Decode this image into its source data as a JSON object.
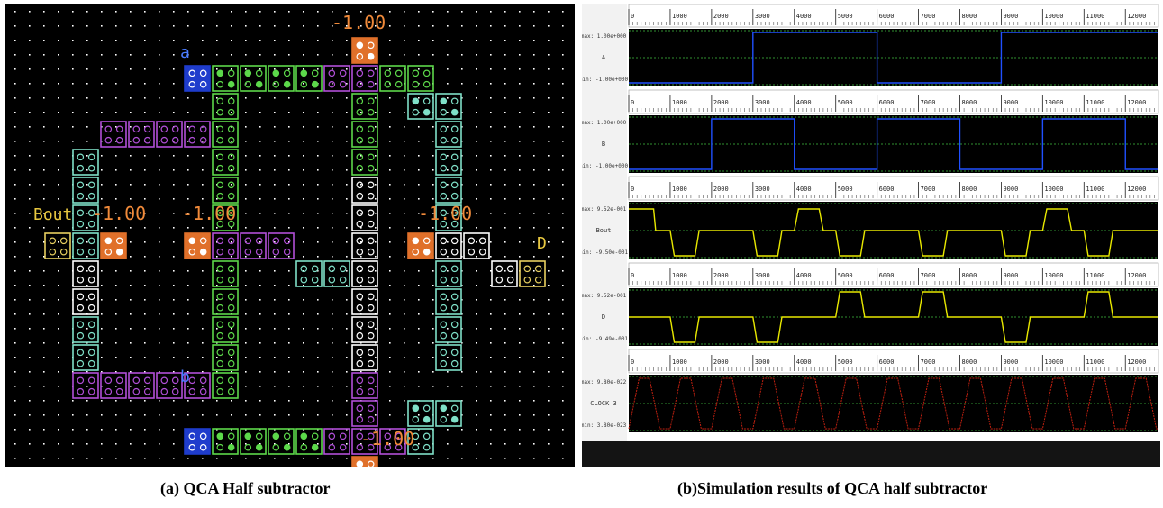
{
  "layout": {
    "labels": {
      "input_a": "a",
      "input_b": "b",
      "output_bout": "Bout",
      "output_d": "D"
    },
    "fixed_cell_values": [
      "-1.00",
      "-1.00",
      "-1.00",
      "-1.00",
      "-1.00"
    ],
    "colors": {
      "background": "#000000",
      "grid_dot": "#ffffff",
      "input_cell": "#1f3ccc",
      "output_cell": "#e8d060",
      "fixed_cell": "#e0702a",
      "clock0": "#5cd84a",
      "clock1": "#b14fd8",
      "clock2": "#7fe0c8",
      "clock3": "#ffffff",
      "value_text": "#f08a3a",
      "label_text": "#4a7cff"
    }
  },
  "simulation": {
    "ticks": [
      "0",
      "1000",
      "2000",
      "3000",
      "4000",
      "5000",
      "6000",
      "7000",
      "8000",
      "9000",
      "10000",
      "11000",
      "12000"
    ],
    "rows": [
      {
        "name": "A",
        "max": "max: 1.00e+000",
        "min": "min: -1.00e+000",
        "color": "#2050ff"
      },
      {
        "name": "B",
        "max": "max: 1.00e+000",
        "min": "min: -1.00e+000",
        "color": "#2050ff"
      },
      {
        "name": "Bout",
        "max": "max: 9.52e-001",
        "min": "min: -9.50e-001",
        "color": "#e8e800"
      },
      {
        "name": "D",
        "max": "max: 9.52e-001",
        "min": "min: -9.49e-001",
        "color": "#e8e800"
      },
      {
        "name": "CLOCK 3",
        "max": "max: 9.80e-022",
        "min": "min: 3.80e-023",
        "color": "#c02010"
      }
    ]
  },
  "captions": {
    "a": "(a)   QCA Half subtractor",
    "b": "(b)Simulation results of QCA half subtractor"
  }
}
